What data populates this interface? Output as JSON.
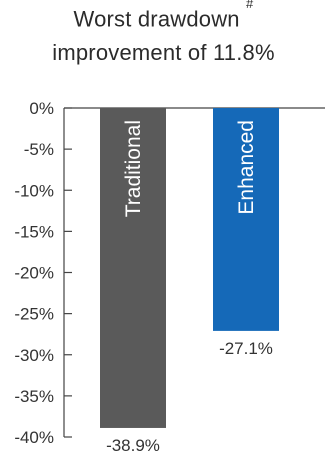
{
  "chart_data": {
    "type": "bar",
    "title_line1": "Worst drawdown",
    "title_marker": "#",
    "title_line2": "improvement of 11.8%",
    "categories": [
      "Traditional",
      "Enhanced"
    ],
    "values": [
      -38.9,
      -27.1
    ],
    "data_labels": [
      "-38.9%",
      "-27.1%"
    ],
    "colors": [
      "#5a5a5a",
      "#1569b8"
    ],
    "ylim": [
      -40,
      0
    ],
    "yticks": [
      0,
      -5,
      -10,
      -15,
      -20,
      -25,
      -30,
      -35,
      -40
    ],
    "ytick_labels": [
      "0%",
      "-5%",
      "-10%",
      "-15%",
      "-20%",
      "-25%",
      "-30%",
      "-35%",
      "-40%"
    ],
    "grid": false
  }
}
